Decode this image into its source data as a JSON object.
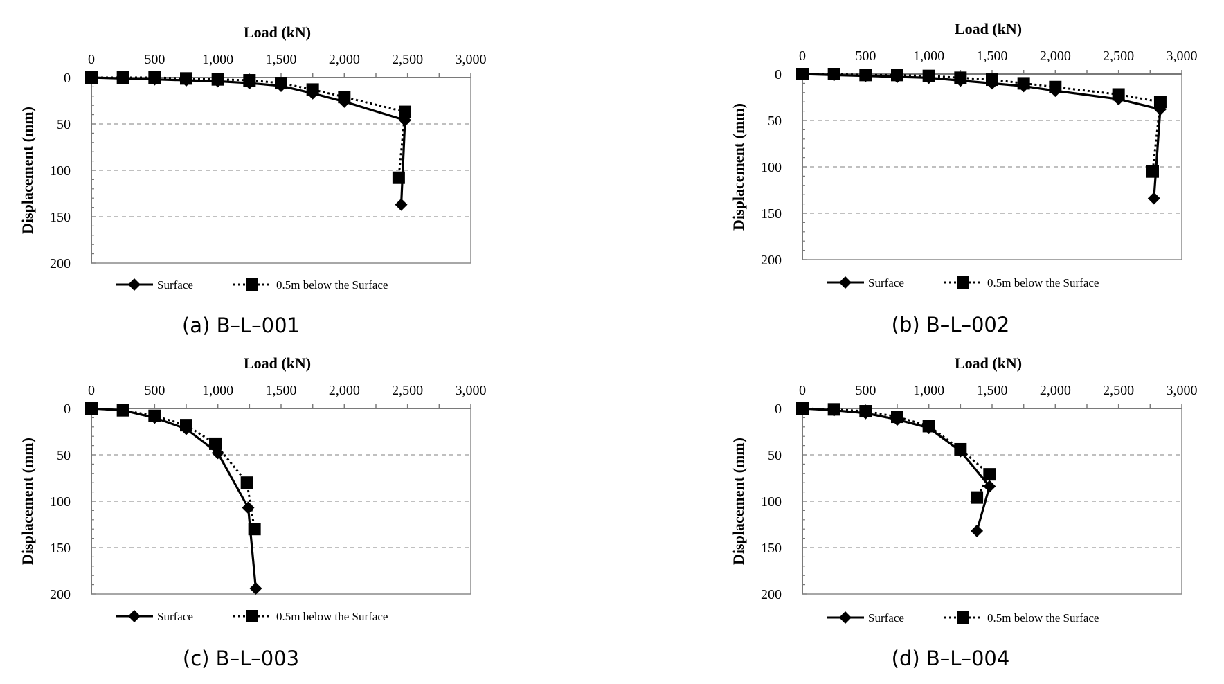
{
  "chart_data": [
    {
      "type": "line",
      "caption": "(a) B–L–001",
      "xlabel": "Load (kN)",
      "ylabel": "Displacement (mm)",
      "xlim": [
        0,
        3000
      ],
      "ylim": [
        0,
        200
      ],
      "x_ticks": [
        "0",
        "500",
        "1,000",
        "1,500",
        "2,000",
        "2,500",
        "3,000"
      ],
      "y_ticks": [
        "0",
        "50",
        "100",
        "150",
        "200"
      ],
      "legend": [
        "Surface",
        "0.5m below the Surface"
      ],
      "series": [
        {
          "name": "Surface",
          "marker": "diamond",
          "style": "solid",
          "points": [
            [
              0,
              0
            ],
            [
              250,
              1
            ],
            [
              500,
              2
            ],
            [
              750,
              3
            ],
            [
              1000,
              4
            ],
            [
              1250,
              6
            ],
            [
              1500,
              9
            ],
            [
              1750,
              17
            ],
            [
              2000,
              26
            ],
            [
              2480,
              46
            ],
            [
              2450,
              137
            ]
          ]
        },
        {
          "name": "0.5m below the Surface",
          "marker": "square",
          "style": "dotted",
          "points": [
            [
              0,
              0
            ],
            [
              250,
              0
            ],
            [
              500,
              0
            ],
            [
              750,
              1
            ],
            [
              1000,
              2
            ],
            [
              1250,
              3
            ],
            [
              1500,
              6
            ],
            [
              1750,
              13
            ],
            [
              2000,
              21
            ],
            [
              2480,
              37
            ],
            [
              2430,
              108
            ]
          ]
        }
      ]
    },
    {
      "type": "line",
      "caption": "(b) B–L–002",
      "xlabel": "Load (kN)",
      "ylabel": "Displacement (mm)",
      "xlim": [
        0,
        3000
      ],
      "ylim": [
        0,
        200
      ],
      "x_ticks": [
        "0",
        "500",
        "1,000",
        "1,500",
        "2,000",
        "2,500",
        "3,000"
      ],
      "y_ticks": [
        "0",
        "50",
        "100",
        "150",
        "200"
      ],
      "legend": [
        "Surface",
        "0.5m below the Surface"
      ],
      "series": [
        {
          "name": "Surface",
          "marker": "diamond",
          "style": "solid",
          "points": [
            [
              0,
              0
            ],
            [
              250,
              1
            ],
            [
              500,
              2
            ],
            [
              750,
              3
            ],
            [
              1000,
              4
            ],
            [
              1250,
              7
            ],
            [
              1500,
              10
            ],
            [
              1750,
              13
            ],
            [
              2000,
              18
            ],
            [
              2500,
              27
            ],
            [
              2830,
              38
            ],
            [
              2780,
              134
            ]
          ]
        },
        {
          "name": "0.5m below the Surface",
          "marker": "square",
          "style": "dotted",
          "points": [
            [
              0,
              0
            ],
            [
              250,
              0
            ],
            [
              500,
              1
            ],
            [
              750,
              1
            ],
            [
              1000,
              2
            ],
            [
              1250,
              4
            ],
            [
              1500,
              6
            ],
            [
              1750,
              10
            ],
            [
              2000,
              14
            ],
            [
              2500,
              22
            ],
            [
              2830,
              30
            ],
            [
              2770,
              105
            ]
          ]
        }
      ]
    },
    {
      "type": "line",
      "caption": "(c) B–L–003",
      "xlabel": "Load (kN)",
      "ylabel": "Displacement (mm)",
      "xlim": [
        0,
        3000
      ],
      "ylim": [
        0,
        200
      ],
      "x_ticks": [
        "0",
        "500",
        "1,000",
        "1,500",
        "2,000",
        "2,500",
        "3,000"
      ],
      "y_ticks": [
        "0",
        "50",
        "100",
        "150",
        "200"
      ],
      "legend": [
        "Surface",
        "0.5m below the Surface"
      ],
      "series": [
        {
          "name": "Surface",
          "marker": "diamond",
          "style": "solid",
          "points": [
            [
              0,
              0
            ],
            [
              250,
              2
            ],
            [
              500,
              10
            ],
            [
              750,
              22
            ],
            [
              1000,
              48
            ],
            [
              1240,
              107
            ],
            [
              1300,
              194
            ]
          ]
        },
        {
          "name": "0.5m below the Surface",
          "marker": "square",
          "style": "dotted",
          "points": [
            [
              0,
              0
            ],
            [
              250,
              2
            ],
            [
              500,
              8
            ],
            [
              750,
              18
            ],
            [
              980,
              38
            ],
            [
              1230,
              80
            ],
            [
              1290,
              130
            ]
          ]
        }
      ]
    },
    {
      "type": "line",
      "caption": "(d) B–L–004",
      "xlabel": "Load (kN)",
      "ylabel": "Displacement (mm)",
      "xlim": [
        0,
        3000
      ],
      "ylim": [
        0,
        200
      ],
      "x_ticks": [
        "0",
        "500",
        "1,000",
        "1,500",
        "2,000",
        "2,500",
        "3,000"
      ],
      "y_ticks": [
        "0",
        "50",
        "100",
        "150",
        "200"
      ],
      "legend": [
        "Surface",
        "0.5m below the Surface"
      ],
      "series": [
        {
          "name": "Surface",
          "marker": "diamond",
          "style": "solid",
          "points": [
            [
              0,
              0
            ],
            [
              250,
              2
            ],
            [
              500,
              5
            ],
            [
              750,
              12
            ],
            [
              1000,
              21
            ],
            [
              1250,
              46
            ],
            [
              1480,
              84
            ],
            [
              1380,
              132
            ]
          ]
        },
        {
          "name": "0.5m below the Surface",
          "marker": "square",
          "style": "dotted",
          "points": [
            [
              0,
              0
            ],
            [
              250,
              1
            ],
            [
              500,
              3
            ],
            [
              750,
              9
            ],
            [
              1000,
              19
            ],
            [
              1250,
              44
            ],
            [
              1480,
              71
            ],
            [
              1380,
              96
            ]
          ]
        }
      ]
    }
  ]
}
